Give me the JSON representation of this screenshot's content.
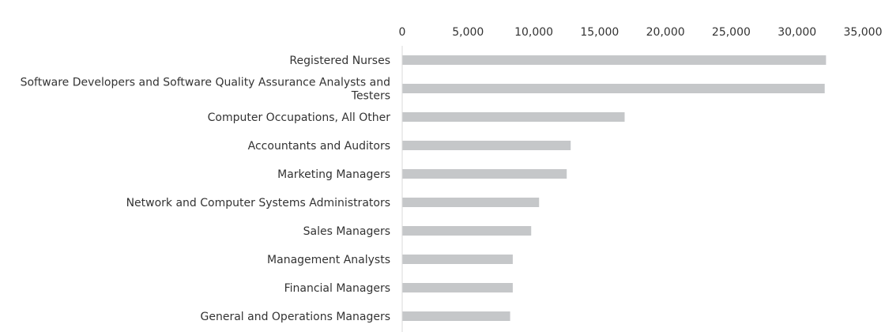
{
  "chart_data": {
    "type": "bar",
    "orientation": "horizontal",
    "title": "",
    "xlabel": "",
    "ylabel": "",
    "xlim": [
      0,
      35000
    ],
    "x_ticks": [
      0,
      5000,
      10000,
      15000,
      20000,
      25000,
      30000,
      35000
    ],
    "x_tick_labels": [
      "0",
      "5,000",
      "10,000",
      "15,000",
      "20,000",
      "25,000",
      "30,000",
      "35,000"
    ],
    "x_axis_position": "top",
    "grid": false,
    "legend": "none",
    "bar_color": "#c5c7c9",
    "axis_color": "#d9d9d9",
    "categories": [
      [
        "Registered Nurses"
      ],
      [
        "Software Developers and Software Quality Assurance Analysts and",
        "Testers"
      ],
      [
        "Computer Occupations, All Other"
      ],
      [
        "Accountants and Auditors"
      ],
      [
        "Marketing Managers"
      ],
      [
        "Network and Computer Systems Administrators"
      ],
      [
        "Sales Managers"
      ],
      [
        "Management Analysts"
      ],
      [
        "Financial Managers"
      ],
      [
        "General and Operations Managers"
      ]
    ],
    "values": [
      32200,
      32100,
      16900,
      12800,
      12500,
      10400,
      9800,
      8400,
      8400,
      8200
    ]
  }
}
